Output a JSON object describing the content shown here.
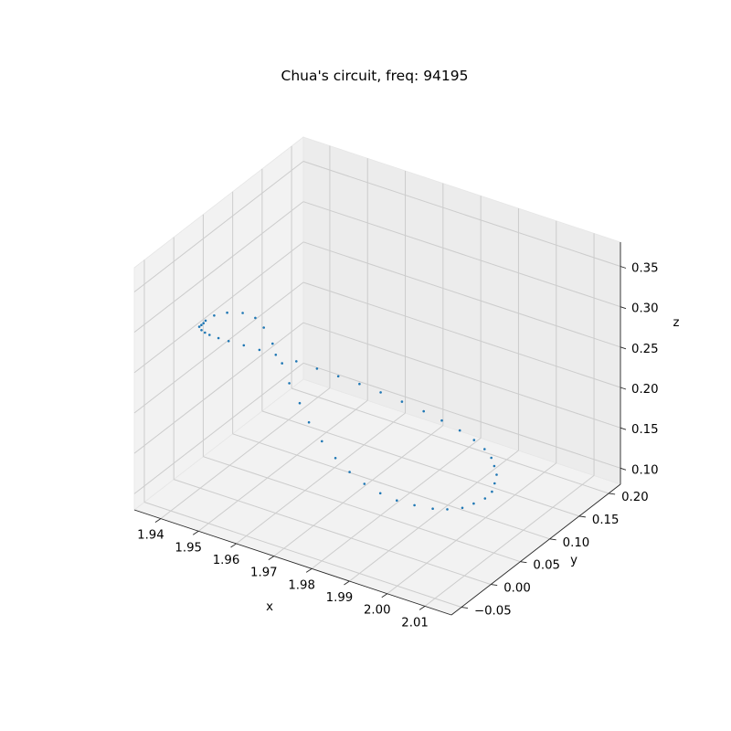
{
  "chart_data": {
    "type": "scatter",
    "projection": "3d",
    "title": "Chua's circuit, freq: 94195",
    "xlabel": "x",
    "ylabel": "y",
    "zlabel": "z",
    "xlim": [
      1.933,
      2.017
    ],
    "ylim": [
      -0.067,
      0.22
    ],
    "zlim": [
      0.08,
      0.38
    ],
    "x_ticks": [
      "1.94",
      "1.95",
      "1.96",
      "1.97",
      "1.98",
      "1.99",
      "2.00",
      "2.01"
    ],
    "y_ticks": [
      "−0.05",
      "0.00",
      "0.05",
      "0.10",
      "0.15",
      "0.20"
    ],
    "z_ticks": [
      "0.10",
      "0.15",
      "0.20",
      "0.25",
      "0.30",
      "0.35"
    ],
    "grid": true,
    "marker_color": "#1f77b4",
    "series": [
      {
        "points": [
          [
            1.938,
            0.022,
            0.272
          ],
          [
            1.939,
            0.012,
            0.276
          ],
          [
            1.94,
            0.002,
            0.281
          ],
          [
            1.941,
            -0.008,
            0.286
          ],
          [
            1.943,
            -0.017,
            0.29
          ],
          [
            1.945,
            -0.024,
            0.294
          ],
          [
            1.947,
            -0.029,
            0.297
          ],
          [
            1.95,
            -0.033,
            0.3
          ],
          [
            1.953,
            -0.035,
            0.302
          ],
          [
            1.957,
            -0.035,
            0.303
          ],
          [
            1.961,
            -0.034,
            0.303
          ],
          [
            1.965,
            -0.032,
            0.302
          ],
          [
            1.97,
            -0.029,
            0.3
          ],
          [
            1.975,
            -0.026,
            0.297
          ],
          [
            1.98,
            -0.022,
            0.293
          ],
          [
            1.985,
            -0.018,
            0.289
          ],
          [
            1.99,
            -0.014,
            0.284
          ],
          [
            1.995,
            -0.01,
            0.278
          ],
          [
            2.0,
            -0.005,
            0.271
          ],
          [
            2.004,
            0.0,
            0.263
          ],
          [
            2.008,
            0.005,
            0.254
          ],
          [
            2.011,
            0.01,
            0.244
          ],
          [
            2.013,
            0.015,
            0.233
          ],
          [
            2.014,
            0.02,
            0.221
          ],
          [
            2.014,
            0.025,
            0.208
          ],
          [
            2.014,
            0.029,
            0.195
          ],
          [
            2.013,
            0.032,
            0.181
          ],
          [
            2.012,
            0.034,
            0.168
          ],
          [
            2.01,
            0.035,
            0.156
          ],
          [
            2.007,
            0.035,
            0.145
          ],
          [
            2.004,
            0.035,
            0.135
          ],
          [
            2.0,
            0.035,
            0.127
          ],
          [
            1.996,
            0.036,
            0.121
          ],
          [
            1.991,
            0.037,
            0.117
          ],
          [
            1.986,
            0.039,
            0.114
          ],
          [
            1.981,
            0.043,
            0.113
          ],
          [
            1.976,
            0.048,
            0.114
          ],
          [
            1.971,
            0.055,
            0.117
          ],
          [
            1.966,
            0.063,
            0.122
          ],
          [
            1.961,
            0.072,
            0.13
          ],
          [
            1.956,
            0.082,
            0.14
          ],
          [
            1.952,
            0.092,
            0.152
          ],
          [
            1.948,
            0.1,
            0.166
          ],
          [
            1.945,
            0.107,
            0.182
          ],
          [
            1.942,
            0.11,
            0.2
          ],
          [
            1.94,
            0.108,
            0.218
          ],
          [
            1.939,
            0.1,
            0.233
          ],
          [
            1.938,
            0.085,
            0.246
          ],
          [
            1.937,
            0.065,
            0.256
          ],
          [
            1.937,
            0.043,
            0.265
          ]
        ]
      }
    ]
  }
}
